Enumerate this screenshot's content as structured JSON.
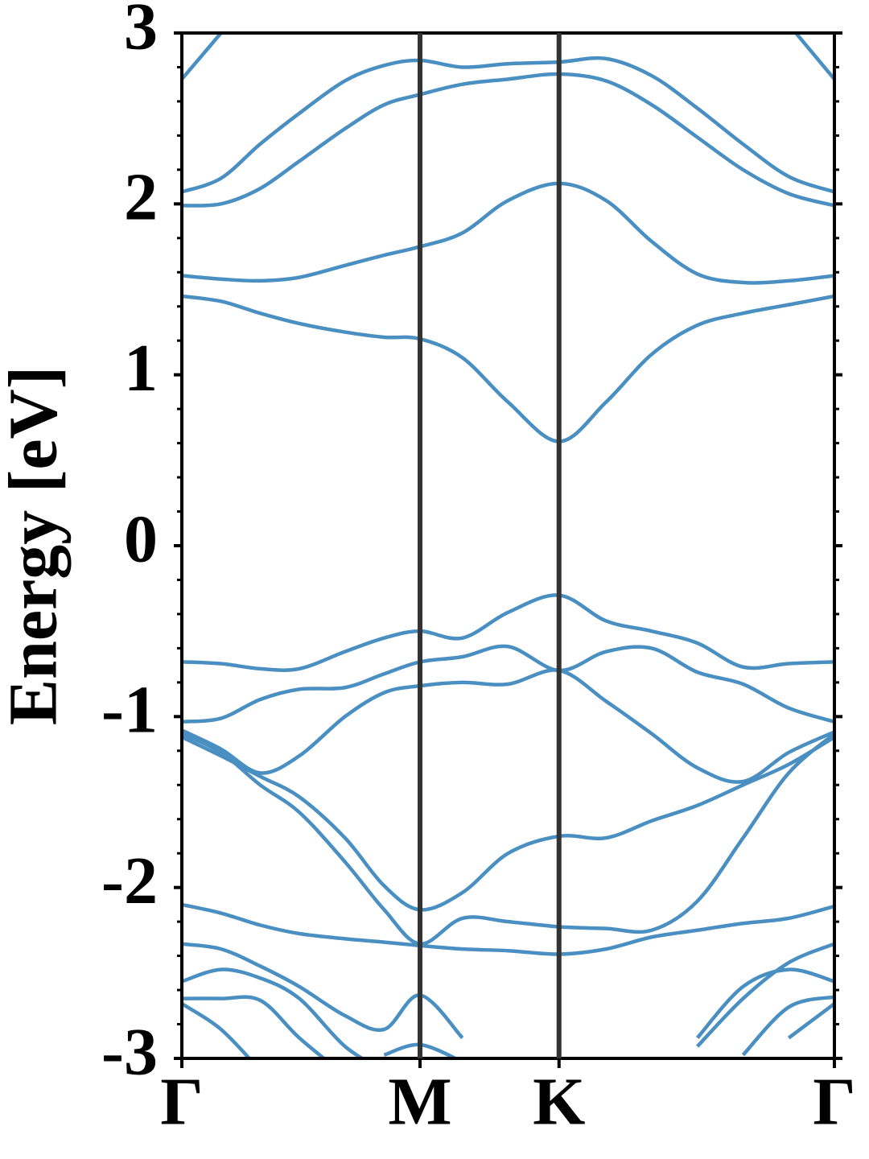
{
  "chart_data": {
    "type": "line",
    "ylabel": "Energy [eV]",
    "x": [
      0,
      0.06,
      0.12,
      0.18,
      0.25,
      0.31,
      0.365,
      0.43,
      0.5,
      0.578,
      0.65,
      0.72,
      0.79,
      0.86,
      0.93,
      1
    ],
    "xlim": [
      0,
      1
    ],
    "xticks": [
      {
        "value": 0,
        "label": "Γ"
      },
      {
        "value": 0.365,
        "label": "M"
      },
      {
        "value": 0.578,
        "label": "K"
      },
      {
        "value": 1,
        "label": "Γ"
      }
    ],
    "ylim": [
      -3,
      3
    ],
    "yticks": [
      -3,
      -2,
      -1,
      0,
      1,
      2,
      3
    ],
    "yminorticks": [
      -2.8,
      -2.6,
      -2.4,
      -2.2,
      -1.8,
      -1.6,
      -1.4,
      -1.2,
      -0.8,
      -0.6,
      -0.4,
      -0.2,
      0.2,
      0.4,
      0.6,
      0.8,
      1.2,
      1.4,
      1.6,
      1.8,
      2.2,
      2.4,
      2.6,
      2.8
    ],
    "vlines": true,
    "vline_color": "#333333",
    "series": [
      {
        "color": "#4a8fc2",
        "values": [
          2.73,
          3.0,
          null,
          null,
          null,
          null,
          null,
          null,
          null,
          null,
          null,
          null,
          null,
          null,
          3.05,
          2.73
        ]
      },
      {
        "color": "#4a8fc2",
        "values": [
          2.07,
          2.15,
          2.35,
          2.53,
          2.72,
          2.81,
          2.84,
          2.8,
          2.82,
          2.83,
          2.85,
          2.75,
          2.56,
          2.35,
          2.16,
          2.07
        ]
      },
      {
        "color": "#4a8fc2",
        "values": [
          1.99,
          2.0,
          2.09,
          2.25,
          2.44,
          2.58,
          2.64,
          2.7,
          2.73,
          2.76,
          2.72,
          2.58,
          2.39,
          2.2,
          2.06,
          1.99
        ]
      },
      {
        "color": "#4a8fc2",
        "values": [
          1.58,
          1.56,
          1.55,
          1.57,
          1.64,
          1.7,
          1.75,
          1.83,
          2.02,
          2.12,
          2.02,
          1.78,
          1.59,
          1.54,
          1.55,
          1.58
        ]
      },
      {
        "color": "#4a8fc2",
        "values": [
          1.46,
          1.43,
          1.36,
          1.3,
          1.25,
          1.22,
          1.21,
          1.1,
          0.84,
          0.61,
          0.84,
          1.12,
          1.29,
          1.36,
          1.41,
          1.46
        ]
      },
      {
        "color": "#4a8fc2",
        "values": [
          -0.68,
          -0.69,
          -0.72,
          -0.72,
          -0.62,
          -0.54,
          -0.5,
          -0.54,
          -0.39,
          -0.29,
          -0.44,
          -0.5,
          -0.57,
          -0.71,
          -0.69,
          -0.68
        ]
      },
      {
        "color": "#4a8fc2",
        "values": [
          -1.03,
          -1.01,
          -0.9,
          -0.84,
          -0.83,
          -0.75,
          -0.68,
          -0.65,
          -0.59,
          -0.73,
          -0.62,
          -0.6,
          -0.74,
          -0.81,
          -0.95,
          -1.03
        ]
      },
      {
        "color": "#4a8fc2",
        "values": [
          -1.08,
          -1.19,
          -1.33,
          -1.23,
          -1.0,
          -0.86,
          -0.82,
          -0.8,
          -0.81,
          -0.73,
          -0.91,
          -1.1,
          -1.3,
          -1.38,
          -1.21,
          -1.09
        ]
      },
      {
        "color": "#4a8fc2",
        "values": [
          -1.1,
          -1.21,
          -1.4,
          -1.56,
          -1.85,
          -2.13,
          -2.33,
          -2.18,
          -2.2,
          -2.23,
          -2.24,
          -2.25,
          -2.08,
          -1.71,
          -1.33,
          -1.1
        ]
      },
      {
        "color": "#4a8fc2",
        "values": [
          -1.12,
          -1.23,
          -1.35,
          -1.47,
          -1.71,
          -1.99,
          -2.13,
          -2.03,
          -1.8,
          -1.7,
          -1.71,
          -1.61,
          -1.52,
          -1.4,
          -1.28,
          -1.12
        ]
      },
      {
        "color": "#4a8fc2",
        "values": [
          -2.1,
          -2.15,
          -2.22,
          -2.27,
          -2.3,
          -2.32,
          -2.34,
          -2.36,
          -2.37,
          -2.39,
          -2.36,
          -2.29,
          -2.25,
          -2.21,
          -2.18,
          -2.11
        ]
      },
      {
        "color": "#4a8fc2",
        "values": [
          -2.33,
          -2.36,
          -2.46,
          -2.58,
          -2.75,
          -2.83,
          -2.63,
          -2.88,
          null,
          null,
          null,
          null,
          -2.93,
          -2.65,
          -2.44,
          -2.33
        ]
      },
      {
        "color": "#4a8fc2",
        "values": [
          -2.55,
          -2.48,
          -2.53,
          -2.65,
          -2.93,
          -3.07,
          null,
          null,
          null,
          null,
          null,
          null,
          -2.88,
          -2.58,
          -2.48,
          -2.55
        ]
      },
      {
        "color": "#4a8fc2",
        "values": [
          -2.65,
          -2.65,
          -2.66,
          -2.88,
          -3.1,
          null,
          null,
          null,
          null,
          null,
          null,
          null,
          null,
          -2.98,
          -2.7,
          -2.64
        ]
      },
      {
        "color": "#4a8fc2",
        "values": [
          -2.68,
          -2.83,
          -3.07,
          null,
          null,
          null,
          null,
          null,
          null,
          null,
          null,
          null,
          null,
          null,
          -2.88,
          -2.68
        ]
      },
      {
        "color": "#4a8fc2",
        "values": [
          null,
          null,
          null,
          null,
          null,
          -2.98,
          -2.92,
          -3.02,
          null,
          null,
          null,
          null,
          null,
          null,
          null,
          null
        ]
      }
    ]
  }
}
